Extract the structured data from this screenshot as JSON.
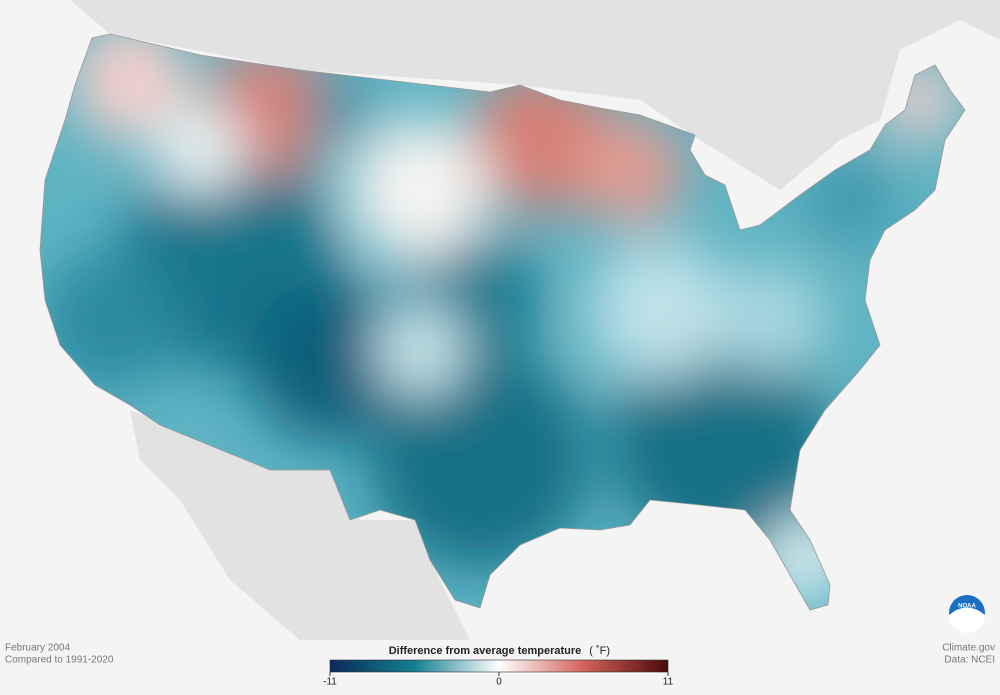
{
  "period": "February 2004",
  "baseline": "Compared to 1991-2020",
  "legend": {
    "title": "Difference from average temperature",
    "unit": "( ˚F)",
    "lim": [
      -11,
      11
    ],
    "ticks": [
      -11,
      0,
      11
    ]
  },
  "credits": {
    "site": "Climate.gov",
    "source": "Data: NCEI",
    "logo": "NOAA"
  }
}
